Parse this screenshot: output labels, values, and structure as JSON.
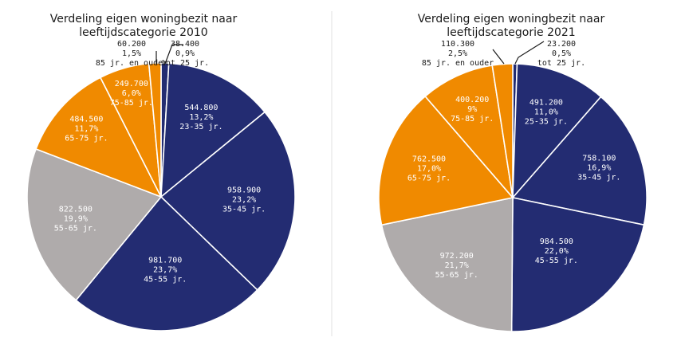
{
  "chart_data": [
    {
      "type": "pie",
      "title_lines": [
        "Verdeling eigen woningbezit naar",
        "leeftijdscategorie 2010"
      ],
      "slices": [
        {
          "value": 38400,
          "value_label": "38.400",
          "pct_label": "0,9%",
          "category": "tot 25 jr.",
          "color": "#232c72"
        },
        {
          "value": 544800,
          "value_label": "544.800",
          "pct_label": "13,2%",
          "category": "23-35 jr.",
          "color": "#232c72"
        },
        {
          "value": 958900,
          "value_label": "958.900",
          "pct_label": "23,2%",
          "category": "35-45 jr.",
          "color": "#232c72"
        },
        {
          "value": 981700,
          "value_label": "981.700",
          "pct_label": "23,7%",
          "category": "45-55 jr.",
          "color": "#232c72"
        },
        {
          "value": 822500,
          "value_label": "822.500",
          "pct_label": "19,9%",
          "category": "55-65 jr.",
          "color": "#afabab"
        },
        {
          "value": 484500,
          "value_label": "484.500",
          "pct_label": "11,7%",
          "category": "65-75 jr.",
          "color": "#f08a00"
        },
        {
          "value": 249700,
          "value_label": "249.700",
          "pct_label": "6,0%",
          "category": "75-85 jr.",
          "color": "#f08a00"
        },
        {
          "value": 60200,
          "value_label": "60.200",
          "pct_label": "1,5%",
          "category": "85 jr. en ouder",
          "color": "#f08a00"
        }
      ]
    },
    {
      "type": "pie",
      "title_lines": [
        "Verdeling eigen woningbezit naar",
        "leeftijdscategorie 2021"
      ],
      "slices": [
        {
          "value": 23200,
          "value_label": "23.200",
          "pct_label": "0,5%",
          "category": "tot 25 jr.",
          "color": "#232c72"
        },
        {
          "value": 491200,
          "value_label": "491.200",
          "pct_label": "11,0%",
          "category": "25-35 jr.",
          "color": "#232c72"
        },
        {
          "value": 758100,
          "value_label": "758.100",
          "pct_label": "16,9%",
          "category": "35-45 jr.",
          "color": "#232c72"
        },
        {
          "value": 984500,
          "value_label": "984.500",
          "pct_label": "22,0%",
          "category": "45-55 jr.",
          "color": "#232c72"
        },
        {
          "value": 972200,
          "value_label": "972.200",
          "pct_label": "21,7%",
          "category": "55-65 jr.",
          "color": "#afabab"
        },
        {
          "value": 762500,
          "value_label": "762.500",
          "pct_label": "17,0%",
          "category": "65-75 jr.",
          "color": "#f08a00"
        },
        {
          "value": 400200,
          "value_label": "400.200",
          "pct_label": "9%",
          "category": "75-85 jr.",
          "color": "#f08a00"
        },
        {
          "value": 110300,
          "value_label": "110.300",
          "pct_label": "2,5%",
          "category": "85 jr. en ouder",
          "color": "#f08a00"
        }
      ]
    }
  ]
}
